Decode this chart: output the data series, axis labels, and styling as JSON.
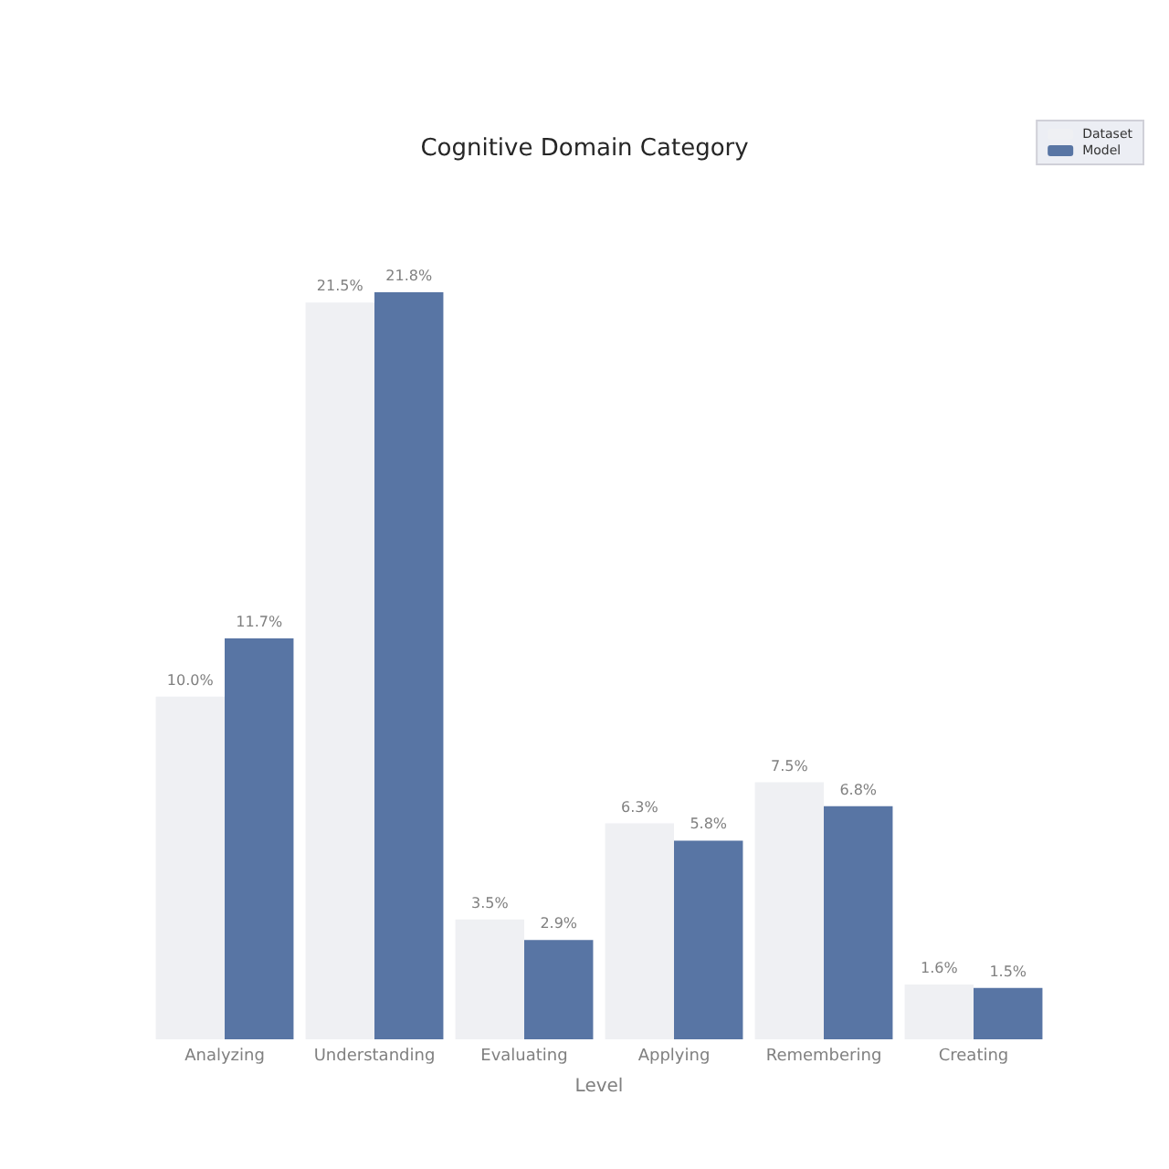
{
  "chart_data": {
    "type": "bar",
    "title": "Cognitive Domain Category",
    "xlabel": "Level",
    "categories": [
      "Analyzing",
      "Understanding",
      "Evaluating",
      "Applying",
      "Remembering",
      "Creating"
    ],
    "series": [
      {
        "name": "Dataset",
        "color": "#eff0f3",
        "values": [
          10.0,
          21.5,
          3.5,
          6.3,
          7.5,
          1.6
        ],
        "value_labels": [
          "10.0%",
          "21.5%",
          "3.5%",
          "6.3%",
          "7.5%",
          "1.6%"
        ]
      },
      {
        "name": "Model",
        "color": "#5875a4",
        "values": [
          11.7,
          21.8,
          2.9,
          5.8,
          6.8,
          1.5
        ],
        "value_labels": [
          "11.7%",
          "21.8%",
          "2.9%",
          "5.8%",
          "6.8%",
          "1.5%"
        ]
      }
    ],
    "legend": "top right",
    "grid": false,
    "tick_labels": "x"
  }
}
